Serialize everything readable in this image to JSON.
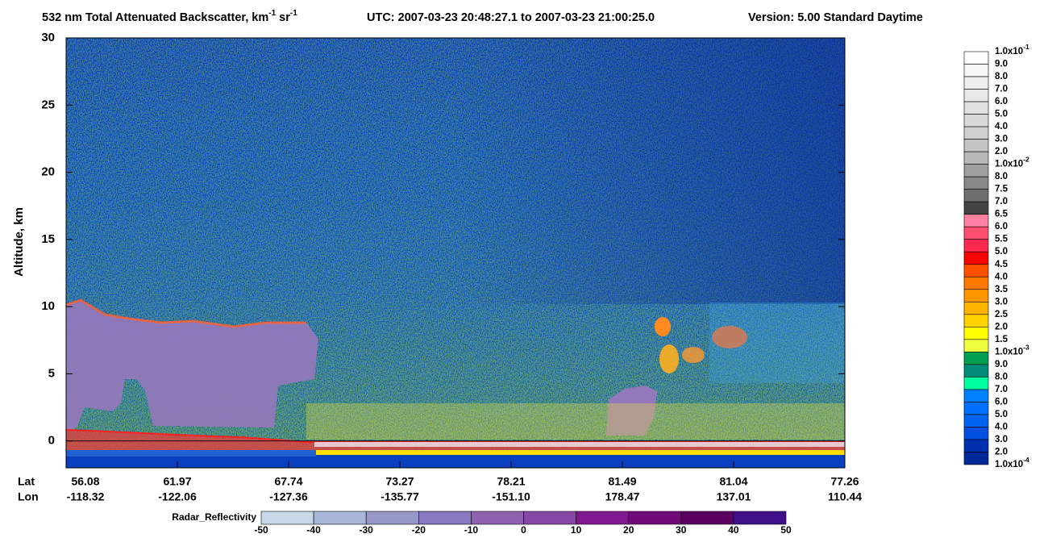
{
  "chart_data": {
    "type": "heatmap",
    "title_segments": [
      "532 nm Total Attenuated Backscatter, km",
      "-1",
      " sr",
      "-1"
    ],
    "utc": "UTC:  2007-03-23 20:48:27.1  to  2007-03-23 21:00:25.0",
    "version": "Version: 5.00  Standard  Daytime",
    "ylabel": "Altitude, km",
    "ylim": [
      -2,
      30
    ],
    "yticks": [
      0,
      5,
      10,
      15,
      20,
      25,
      30
    ],
    "x_row_labels": [
      "Lat",
      "Lon"
    ],
    "x_ticks": [
      {
        "lat": "56.08",
        "lon": "-118.32"
      },
      {
        "lat": "61.97",
        "lon": "-122.06"
      },
      {
        "lat": "67.74",
        "lon": "-127.36"
      },
      {
        "lat": "73.27",
        "lon": "-135.77"
      },
      {
        "lat": "78.21",
        "lon": "-151.10"
      },
      {
        "lat": "81.49",
        "lon": "178.47"
      },
      {
        "lat": "81.04",
        "lon": "137.01"
      },
      {
        "lat": "77.26",
        "lon": "110.44"
      }
    ],
    "colorbar": {
      "labels": [
        {
          "text": "1.0x10",
          "sup": "-1"
        },
        {
          "text": "9.0"
        },
        {
          "text": "8.0"
        },
        {
          "text": "7.0"
        },
        {
          "text": "6.0"
        },
        {
          "text": "5.0"
        },
        {
          "text": "4.0"
        },
        {
          "text": "3.0"
        },
        {
          "text": "2.0"
        },
        {
          "text": "1.0x10",
          "sup": "-2"
        },
        {
          "text": "8.0"
        },
        {
          "text": "7.5"
        },
        {
          "text": "7.0"
        },
        {
          "text": "6.5"
        },
        {
          "text": "6.0"
        },
        {
          "text": "5.5"
        },
        {
          "text": "5.0"
        },
        {
          "text": "4.5"
        },
        {
          "text": "4.0"
        },
        {
          "text": "3.5"
        },
        {
          "text": "3.0"
        },
        {
          "text": "2.5"
        },
        {
          "text": "2.0"
        },
        {
          "text": "1.5"
        },
        {
          "text": "1.0x10",
          "sup": "-3"
        },
        {
          "text": "9.0"
        },
        {
          "text": "8.0"
        },
        {
          "text": "7.0"
        },
        {
          "text": "6.0"
        },
        {
          "text": "5.0"
        },
        {
          "text": "4.0"
        },
        {
          "text": "3.0"
        },
        {
          "text": "2.0"
        },
        {
          "text": "1.0x10",
          "sup": "-4"
        }
      ],
      "colors": [
        "#ffffff",
        "#f7f7f7",
        "#efefef",
        "#e8e8e8",
        "#e0e0e0",
        "#d8d8d8",
        "#d0d0d0",
        "#c4c4c4",
        "#b8b8b8",
        "#a0a0a0",
        "#888888",
        "#6e6e6e",
        "#444444",
        "#ff80a0",
        "#ff5070",
        "#ff2850",
        "#ff0000",
        "#ff5000",
        "#ff7800",
        "#ff9600",
        "#ffb400",
        "#ffd200",
        "#ffff00",
        "#f0ff40",
        "#00a050",
        "#008c78",
        "#00ffa0",
        "#0080ff",
        "#0070ff",
        "#0064f0",
        "#0050e0",
        "#0030b0",
        "#002898"
      ]
    },
    "radar_colorbar": {
      "label": "Radar_Reflectivity",
      "ticks": [
        -50,
        -40,
        -30,
        -20,
        -10,
        0,
        10,
        20,
        30,
        40,
        50
      ],
      "colors": [
        "#c8d8e8",
        "#a8b8d8",
        "#9898c8",
        "#8878c0",
        "#9060b0",
        "#8848a8",
        "#801890",
        "#700a78",
        "#5a0060",
        "#40108a"
      ]
    }
  }
}
